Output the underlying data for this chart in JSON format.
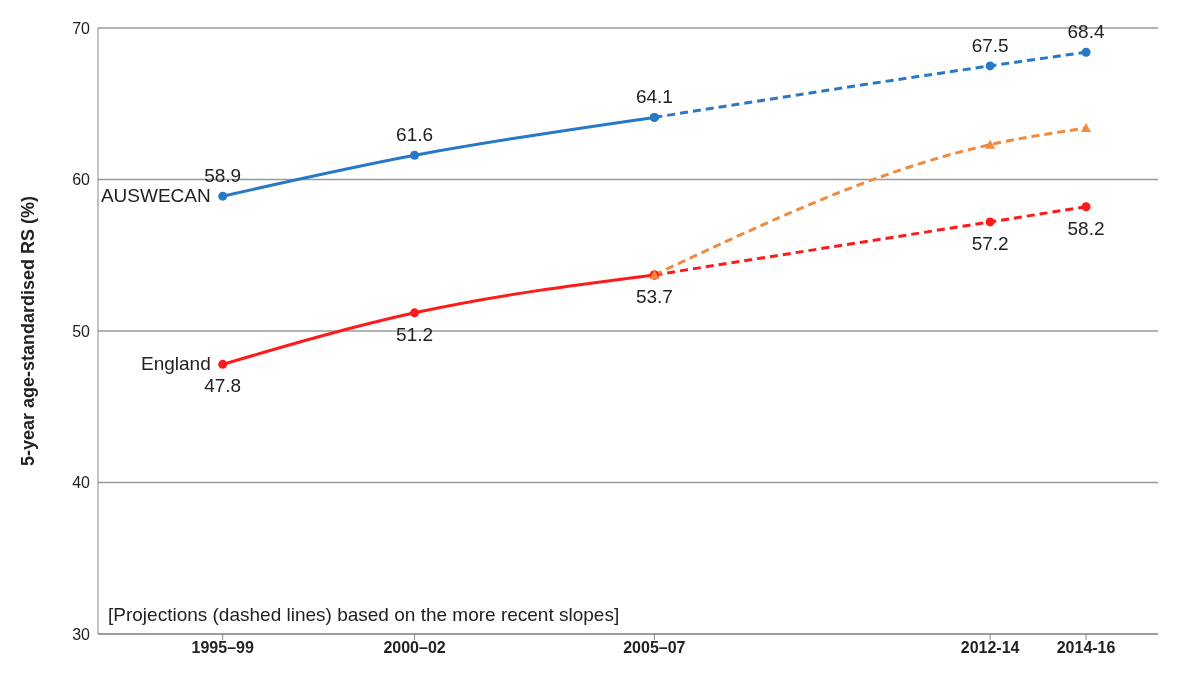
{
  "chart_data": {
    "type": "line",
    "ylabel": "5-year age-standardised RS (%)",
    "annotations": [
      "[Projections (dashed lines) based on the more recent slopes]"
    ],
    "categories": [
      null,
      null,
      "1995–99",
      null,
      null,
      null,
      "2000–02",
      null,
      null,
      null,
      null,
      "2005–07",
      null,
      null,
      null,
      null,
      null,
      null,
      "2012-14",
      null,
      "2014-16",
      null
    ],
    "ylim": [
      30,
      70
    ],
    "yticks": [
      30,
      40,
      50,
      60,
      70
    ],
    "grid": "y",
    "marker": "circle",
    "series": [
      {
        "name": "AUSWECAN",
        "color": "#2878c8",
        "values": [
          null,
          null,
          58.9,
          null,
          null,
          null,
          61.6,
          null,
          null,
          null,
          null,
          64.1,
          null,
          null,
          null,
          null,
          null,
          null,
          null,
          null,
          null,
          null
        ],
        "value_labels": [
          null,
          null,
          "58.9",
          null,
          null,
          null,
          "61.6",
          null,
          null,
          null,
          null,
          "64.1",
          null,
          null,
          null,
          null,
          null,
          null,
          null,
          null,
          null,
          null
        ],
        "line_style": "solid"
      },
      {
        "color": "#2878c8",
        "values": [
          null,
          null,
          null,
          null,
          null,
          null,
          null,
          null,
          null,
          null,
          null,
          64.1,
          null,
          null,
          null,
          null,
          null,
          null,
          67.5,
          null,
          68.4,
          null
        ],
        "value_labels": [
          null,
          null,
          null,
          null,
          null,
          null,
          null,
          null,
          null,
          null,
          null,
          null,
          null,
          null,
          null,
          null,
          null,
          null,
          "67.5",
          null,
          "68.4",
          null
        ],
        "line_style": "dashed"
      },
      {
        "name": "England",
        "color": "#ff1a1a",
        "values": [
          null,
          null,
          47.8,
          null,
          null,
          null,
          51.2,
          null,
          null,
          null,
          null,
          53.7,
          null,
          null,
          null,
          null,
          null,
          null,
          null,
          null,
          null,
          null
        ],
        "value_labels": [
          null,
          null,
          "47.8",
          null,
          null,
          null,
          "51.2",
          null,
          null,
          null,
          null,
          "53.7",
          null,
          null,
          null,
          null,
          null,
          null,
          null,
          null,
          null,
          null
        ],
        "line_style": "solid"
      },
      {
        "color": "#ff1a1a",
        "values": [
          null,
          null,
          null,
          null,
          null,
          null,
          null,
          null,
          null,
          null,
          null,
          53.7,
          null,
          null,
          null,
          null,
          null,
          null,
          57.2,
          null,
          58.2,
          null
        ],
        "value_labels": [
          null,
          null,
          null,
          null,
          null,
          null,
          null,
          null,
          null,
          null,
          null,
          null,
          null,
          null,
          null,
          null,
          null,
          null,
          "57.2",
          null,
          "58.2",
          null
        ],
        "line_style": "dashed"
      },
      {
        "color": "#f08a3c",
        "values": [
          null,
          null,
          null,
          null,
          null,
          null,
          null,
          null,
          null,
          null,
          null,
          53.7,
          null,
          null,
          null,
          null,
          null,
          null,
          62.3,
          null,
          63.4,
          null
        ],
        "line_style": "dashed",
        "marker": "triangle"
      }
    ]
  }
}
